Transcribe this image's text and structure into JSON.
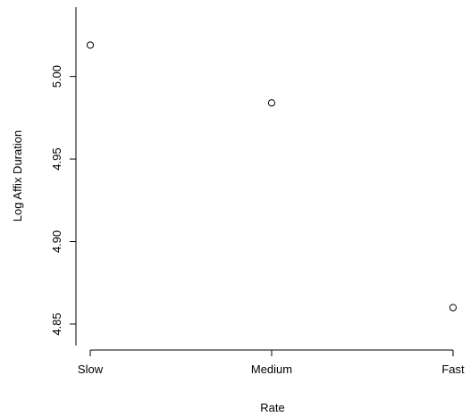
{
  "chart_data": {
    "type": "scatter",
    "title": "",
    "xlabel": "Rate",
    "ylabel": "Log Affix Duration",
    "categories": [
      "Slow",
      "Medium",
      "Fast"
    ],
    "values": [
      5.019,
      4.984,
      4.86
    ],
    "y_ticks": [
      "4.85",
      "4.90",
      "4.95",
      "5.00"
    ],
    "y_tick_values": [
      4.85,
      4.9,
      4.95,
      5.0
    ],
    "ylim": [
      4.837,
      5.042
    ],
    "grid": false,
    "legend": "none",
    "marker": "open-circle"
  }
}
